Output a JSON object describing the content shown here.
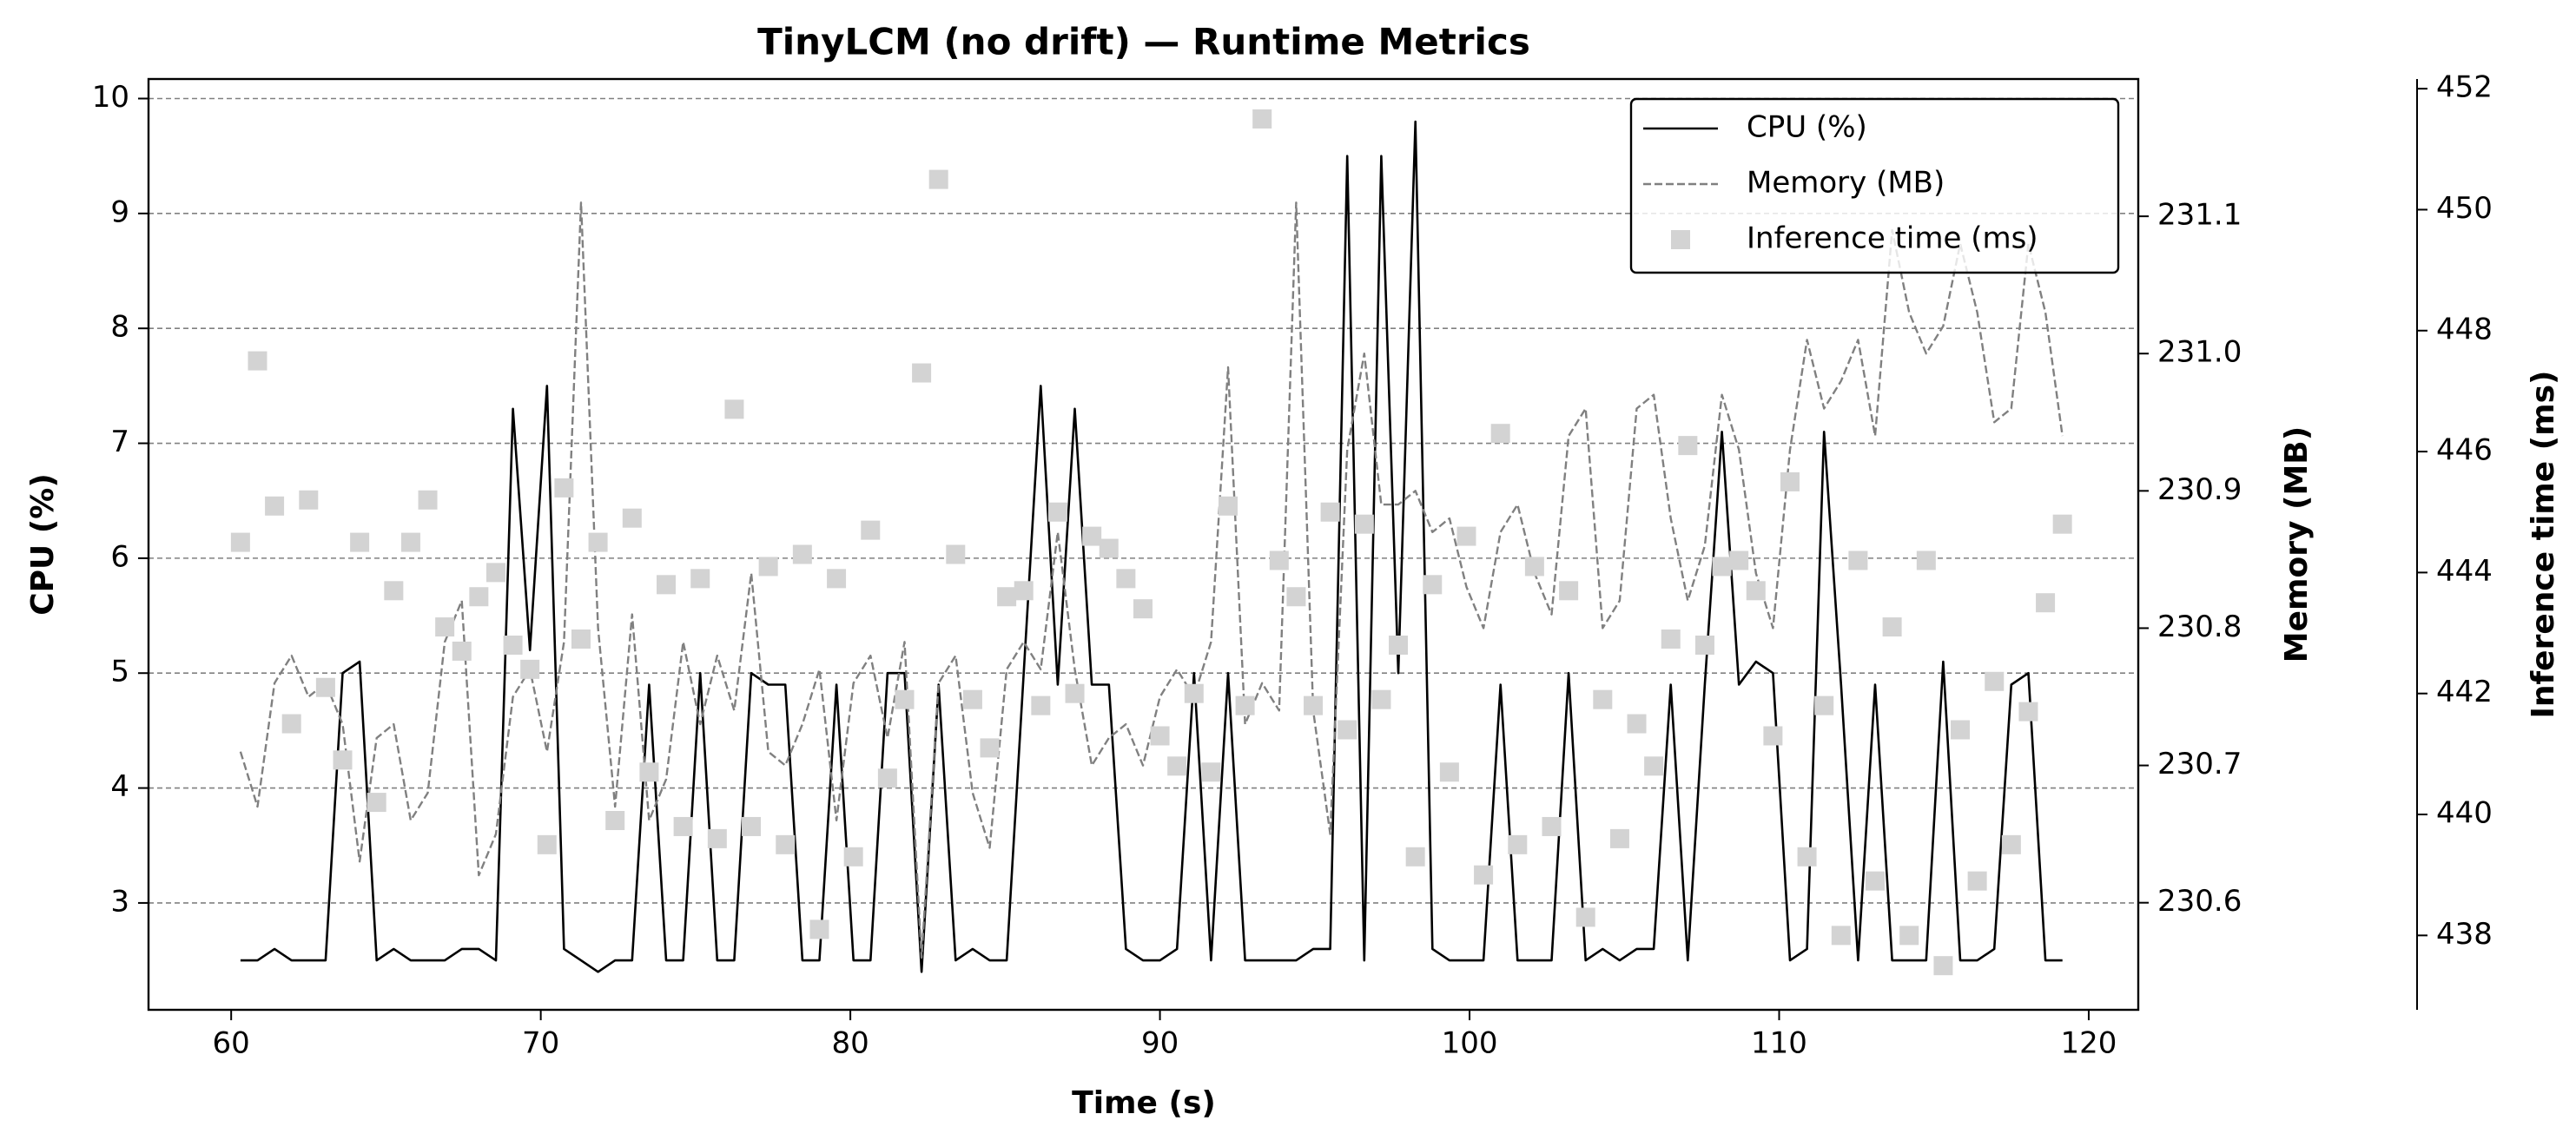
{
  "chart_data": {
    "type": "multi-axis-line",
    "title": "TinyLCM (no drift) — Runtime Metrics",
    "xlabel": "Time (s)",
    "ylabel": "CPU (%)",
    "y2label": "Memory (MB)",
    "y3label": "Inference time (ms)",
    "x": [
      60.3,
      60.85,
      61.4,
      61.95,
      62.5,
      63.05,
      63.6,
      64.15,
      64.7,
      65.25,
      65.8,
      66.35,
      66.9,
      67.45,
      68.0,
      68.55,
      69.1,
      69.65,
      70.2,
      70.75,
      71.3,
      71.85,
      72.4,
      72.95,
      73.5,
      74.05,
      74.6,
      75.15,
      75.7,
      76.25,
      76.8,
      77.35,
      77.9,
      78.45,
      79.0,
      79.55,
      80.1,
      80.65,
      81.2,
      81.75,
      82.3,
      82.85,
      83.4,
      83.95,
      84.5,
      85.05,
      85.6,
      86.15,
      86.7,
      87.25,
      87.8,
      88.35,
      88.9,
      89.45,
      90.0,
      90.55,
      91.1,
      91.65,
      92.2,
      92.75,
      93.3,
      93.85,
      94.4,
      94.95,
      95.5,
      96.05,
      96.6,
      97.15,
      97.7,
      98.25,
      98.8,
      99.35,
      99.9,
      100.45,
      101.0,
      101.55,
      102.1,
      102.65,
      103.2,
      103.75,
      104.3,
      104.85,
      105.4,
      105.95,
      106.5,
      107.05,
      107.6,
      108.15,
      108.7,
      109.25,
      109.8,
      110.35,
      110.9,
      111.45,
      112.0,
      112.55,
      113.1,
      113.65,
      114.2,
      114.75,
      115.3,
      115.85,
      116.4,
      116.95,
      117.5,
      118.05,
      118.6,
      119.15
    ],
    "series": [
      {
        "name": "CPU (%)",
        "color": "#000000",
        "linestyle": "solid",
        "axis": "y",
        "values": [
          2.5,
          2.5,
          2.6,
          2.5,
          2.5,
          2.5,
          5.0,
          5.1,
          2.5,
          2.6,
          2.5,
          2.5,
          2.5,
          2.6,
          2.6,
          2.5,
          7.3,
          5.2,
          7.5,
          2.6,
          2.5,
          2.4,
          2.5,
          2.5,
          4.9,
          2.5,
          2.5,
          5.0,
          2.5,
          2.5,
          5.0,
          4.9,
          4.9,
          2.5,
          2.5,
          4.9,
          2.5,
          2.5,
          5.0,
          5.0,
          2.4,
          4.9,
          2.5,
          2.6,
          2.5,
          2.5,
          5.0,
          7.5,
          4.9,
          7.3,
          4.9,
          4.9,
          2.6,
          2.5,
          2.5,
          2.6,
          5.0,
          2.5,
          5.0,
          2.5,
          2.5,
          2.5,
          2.5,
          2.6,
          2.6,
          9.5,
          2.5,
          9.5,
          5.0,
          9.8,
          2.6,
          2.5,
          2.5,
          2.5,
          4.9,
          2.5,
          2.5,
          2.5,
          5.0,
          2.5,
          2.6,
          2.5,
          2.6,
          2.6,
          4.9,
          2.5,
          4.9,
          7.1,
          4.9,
          5.1,
          5.0,
          2.5,
          2.6,
          7.1,
          4.9,
          2.5,
          4.9,
          2.5,
          2.5,
          2.5,
          5.1,
          2.5,
          2.5,
          2.6,
          4.9,
          5.0,
          2.5,
          2.5
        ]
      },
      {
        "name": "Memory (MB)",
        "color": "#808080",
        "linestyle": "dashed",
        "axis": "y2",
        "values": [
          230.71,
          230.67,
          230.76,
          230.78,
          230.75,
          230.76,
          230.73,
          230.63,
          230.72,
          230.73,
          230.66,
          230.68,
          230.79,
          230.82,
          230.62,
          230.65,
          230.75,
          230.77,
          230.71,
          230.79,
          231.11,
          230.8,
          230.67,
          230.81,
          230.66,
          230.69,
          230.79,
          230.73,
          230.78,
          230.74,
          230.84,
          230.71,
          230.7,
          230.73,
          230.77,
          230.66,
          230.76,
          230.78,
          230.72,
          230.79,
          230.56,
          230.76,
          230.78,
          230.68,
          230.64,
          230.77,
          230.79,
          230.77,
          230.87,
          230.77,
          230.7,
          230.72,
          230.73,
          230.7,
          230.75,
          230.77,
          230.75,
          230.79,
          230.99,
          230.73,
          230.76,
          230.74,
          231.11,
          230.74,
          230.65,
          230.93,
          231.0,
          230.89,
          230.89,
          230.9,
          230.87,
          230.88,
          230.83,
          230.8,
          230.87,
          230.89,
          230.84,
          230.81,
          230.94,
          230.96,
          230.8,
          230.82,
          230.96,
          230.97,
          230.88,
          230.82,
          230.86,
          230.97,
          230.93,
          230.84,
          230.8,
          230.93,
          231.01,
          230.96,
          230.98,
          231.01,
          230.94,
          231.09,
          231.03,
          231.0,
          231.02,
          231.08,
          231.03,
          230.95,
          230.96,
          231.08,
          231.03,
          230.94
        ]
      },
      {
        "name": "Inference time (ms)",
        "color": "#d3d3d3",
        "marker": "square",
        "axis": "y3",
        "values": [
          444.5,
          447.5,
          445.1,
          441.5,
          445.2,
          442.1,
          440.9,
          444.5,
          440.2,
          443.7,
          444.5,
          445.2,
          443.1,
          442.7,
          443.6,
          444.0,
          442.8,
          442.4,
          439.5,
          445.4,
          442.9,
          444.5,
          439.9,
          444.9,
          440.7,
          443.8,
          439.8,
          443.9,
          439.6,
          446.7,
          439.8,
          444.1,
          439.5,
          444.3,
          438.1,
          443.9,
          439.3,
          444.7,
          440.6,
          441.9,
          447.3,
          450.5,
          444.3,
          441.9,
          441.1,
          443.6,
          443.7,
          441.8,
          445.0,
          442.0,
          444.6,
          444.4,
          443.9,
          443.4,
          441.3,
          440.8,
          442.0,
          440.7,
          445.1,
          441.8,
          451.5,
          444.2,
          443.6,
          441.8,
          445.0,
          441.4,
          444.8,
          441.9,
          442.8,
          439.3,
          443.8,
          440.7,
          444.6,
          439.0,
          446.3,
          439.5,
          444.1,
          439.8,
          443.7,
          438.3,
          441.9,
          439.6,
          441.5,
          440.8,
          442.9,
          446.1,
          442.8,
          444.1,
          444.2,
          443.7,
          441.3,
          445.5,
          439.3,
          441.8,
          438.0,
          444.2,
          438.9,
          443.1,
          438.0,
          444.2,
          437.5,
          441.4,
          438.9,
          442.2,
          439.5,
          441.7,
          443.5,
          444.8
        ]
      }
    ],
    "xlim": [
      57.33,
      121.6
    ],
    "xticks": [
      60,
      70,
      80,
      90,
      100,
      110,
      120
    ],
    "ylim": [
      2.07,
      10.17
    ],
    "yticks": [
      3,
      4,
      5,
      6,
      7,
      8,
      9,
      10
    ],
    "y2lim": [
      230.522,
      231.2
    ],
    "y2ticks": [
      230.6,
      230.7,
      230.8,
      230.9,
      {
        "value": 231,
        "label": "231.0"
      },
      231.1
    ],
    "y3lim": [
      436.77,
      452.16
    ],
    "y3ticks": [
      438,
      440,
      442,
      444,
      446,
      448,
      450,
      452
    ],
    "grid": true,
    "legend": "upper right"
  }
}
